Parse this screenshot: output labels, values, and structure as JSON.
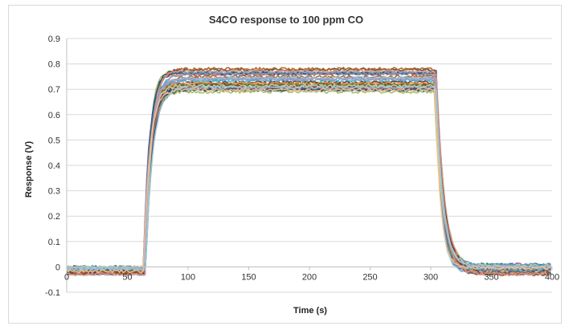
{
  "chart_data": {
    "type": "line",
    "title": "S4CO response to 100 ppm CO",
    "xlabel": "Time (s)",
    "ylabel": "Response (V)",
    "xlim": [
      0,
      400
    ],
    "ylim": [
      -0.1,
      0.9
    ],
    "x_ticks": [
      "0",
      "50",
      "100",
      "150",
      "200",
      "250",
      "300",
      "350",
      "400"
    ],
    "y_ticks": [
      "-0.1",
      "0",
      "0.1",
      "0.2",
      "0.3",
      "0.4",
      "0.5",
      "0.6",
      "0.7",
      "0.8",
      "0.9"
    ],
    "grid": "horizontal",
    "legend": "none",
    "series_profile": {
      "baseline_range": [
        -0.03,
        0.0
      ],
      "gas_on_time": 64,
      "rise_complete_time": 78,
      "plateau_range": [
        0.69,
        0.78
      ],
      "gas_off_time": 304,
      "fall_complete_time": 320,
      "tail_range": [
        -0.03,
        0.01
      ]
    },
    "series_count": 36,
    "series_colors": [
      "#1f3f7a",
      "#c0504d",
      "#9bbb59",
      "#8064a2",
      "#4bacc6",
      "#f79646",
      "#2c4d75",
      "#772c2a",
      "#5f7530",
      "#4d3b62",
      "#276a7c",
      "#b65708",
      "#729aca",
      "#d99694",
      "#c3d69b",
      "#b3a2c7",
      "#93cddd",
      "#fac090"
    ]
  }
}
